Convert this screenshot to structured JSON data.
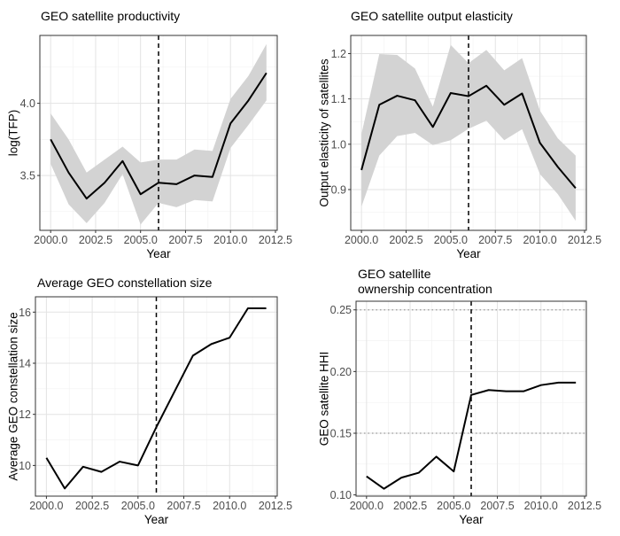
{
  "chart_data": [
    {
      "type": "line",
      "title": "GEO satellite productivity",
      "xlabel": "Year",
      "ylabel": "log(TFP)",
      "xlim": [
        1999.4,
        2012.6
      ],
      "ylim": [
        3.12,
        4.47
      ],
      "x_ticks": [
        2000.0,
        2002.5,
        2005.0,
        2007.5,
        2010.0,
        2012.5
      ],
      "x_tick_labels": [
        "2000.0",
        "2002.5",
        "2005.0",
        "2007.5",
        "2010.0",
        "2012.5"
      ],
      "y_ticks": [
        3.5,
        4.0
      ],
      "y_tick_labels": [
        "3.5",
        "4.0"
      ],
      "grid": true,
      "vline": 2006,
      "hlines": [],
      "series": [
        {
          "x": [
            2000,
            2001,
            2002,
            2003,
            2004,
            2005,
            2006,
            2007,
            2008,
            2009,
            2010,
            2011,
            2012
          ],
          "values": [
            3.75,
            3.52,
            3.34,
            3.45,
            3.6,
            3.37,
            3.45,
            3.44,
            3.5,
            3.49,
            3.86,
            4.02,
            4.21
          ],
          "lower": [
            3.58,
            3.3,
            3.17,
            3.31,
            3.51,
            3.16,
            3.31,
            3.28,
            3.33,
            3.32,
            3.69,
            3.85,
            4.02
          ],
          "upper": [
            3.93,
            3.75,
            3.52,
            3.61,
            3.7,
            3.59,
            3.61,
            3.61,
            3.68,
            3.67,
            4.03,
            4.19,
            4.41
          ]
        }
      ]
    },
    {
      "type": "line",
      "title": "GEO satellite output elasticity",
      "xlabel": "Year",
      "ylabel": "Output elasticity of satellites",
      "xlim": [
        1999.4,
        2012.6
      ],
      "ylim": [
        0.81,
        1.24
      ],
      "x_ticks": [
        2000.0,
        2002.5,
        2005.0,
        2007.5,
        2010.0,
        2012.5
      ],
      "x_tick_labels": [
        "2000.0",
        "2002.5",
        "2005.0",
        "2007.5",
        "2010.0",
        "2012.5"
      ],
      "y_ticks": [
        0.9,
        1.0,
        1.1,
        1.2
      ],
      "y_tick_labels": [
        "0.9",
        "1.0",
        "1.1",
        "1.2"
      ],
      "grid": true,
      "vline": 2006,
      "hlines": [],
      "series": [
        {
          "x": [
            2000,
            2001,
            2002,
            2003,
            2004,
            2005,
            2006,
            2007,
            2008,
            2009,
            2010,
            2011,
            2012
          ],
          "values": [
            0.943,
            1.087,
            1.107,
            1.097,
            1.038,
            1.113,
            1.106,
            1.129,
            1.087,
            1.112,
            1.003,
            0.95,
            0.903
          ],
          "lower": [
            0.862,
            0.975,
            1.018,
            1.025,
            0.998,
            1.009,
            1.034,
            1.052,
            1.009,
            1.033,
            0.934,
            0.89,
            0.831
          ],
          "upper": [
            1.022,
            1.199,
            1.197,
            1.167,
            1.083,
            1.219,
            1.179,
            1.208,
            1.163,
            1.19,
            1.074,
            1.013,
            0.975
          ]
        }
      ]
    },
    {
      "type": "line",
      "title": "Average GEO constellation size",
      "xlabel": "Year",
      "ylabel": "Average GEO constellation size",
      "xlim": [
        1999.4,
        2012.6
      ],
      "ylim": [
        8.8,
        16.6
      ],
      "x_ticks": [
        2000.0,
        2002.5,
        2005.0,
        2007.5,
        2010.0,
        2012.5
      ],
      "x_tick_labels": [
        "2000.0",
        "2002.5",
        "2005.0",
        "2007.5",
        "2010.0",
        "2012.5"
      ],
      "y_ticks": [
        10,
        12,
        14,
        16
      ],
      "y_tick_labels": [
        "10",
        "12",
        "14",
        "16"
      ],
      "grid": true,
      "vline": 2006,
      "hlines": [],
      "series": [
        {
          "x": [
            2000,
            2001,
            2002,
            2003,
            2004,
            2005,
            2006,
            2007,
            2008,
            2009,
            2010,
            2011,
            2012
          ],
          "values": [
            10.3,
            9.1,
            9.95,
            9.75,
            10.15,
            10.0,
            11.5,
            12.9,
            14.3,
            14.75,
            15.0,
            16.15,
            16.15
          ]
        }
      ]
    },
    {
      "type": "line",
      "title": "GEO satellite\nownership concentration",
      "xlabel": "Year",
      "ylabel": "GEO satellite HHI",
      "xlim": [
        1999.4,
        2012.6
      ],
      "ylim": [
        0.099,
        0.257
      ],
      "x_ticks": [
        2000.0,
        2002.5,
        2005.0,
        2007.5,
        2010.0,
        2012.5
      ],
      "x_tick_labels": [
        "2000.0",
        "2002.5",
        "2005.0",
        "2007.5",
        "2010.0",
        "2012.5"
      ],
      "y_ticks": [
        0.1,
        0.15,
        0.2,
        0.25
      ],
      "y_tick_labels": [
        "0.10",
        "0.15",
        "0.20",
        "0.25"
      ],
      "grid": true,
      "vline": 2006,
      "hlines": [
        0.15,
        0.25
      ],
      "series": [
        {
          "x": [
            2000,
            2001,
            2002,
            2003,
            2004,
            2005,
            2006,
            2007,
            2008,
            2009,
            2010,
            2011,
            2012
          ],
          "values": [
            0.115,
            0.105,
            0.114,
            0.118,
            0.131,
            0.119,
            0.181,
            0.185,
            0.184,
            0.184,
            0.189,
            0.191,
            0.191
          ]
        }
      ]
    }
  ]
}
